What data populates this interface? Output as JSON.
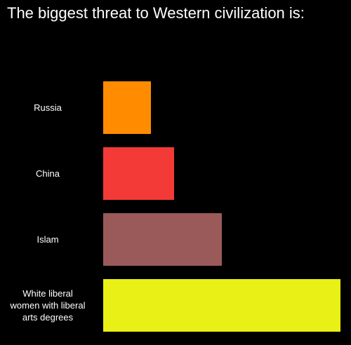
{
  "chart_data": {
    "type": "bar",
    "orientation": "horizontal",
    "title": "The biggest threat to Western civilization is:",
    "categories": [
      "Russia",
      "China",
      "Islam",
      "White liberal women with liberal arts degrees"
    ],
    "values": [
      20,
      30,
      50,
      100
    ],
    "colors": [
      "#ff8c00",
      "#f43a36",
      "#9b5a5a",
      "#e8f015"
    ]
  }
}
